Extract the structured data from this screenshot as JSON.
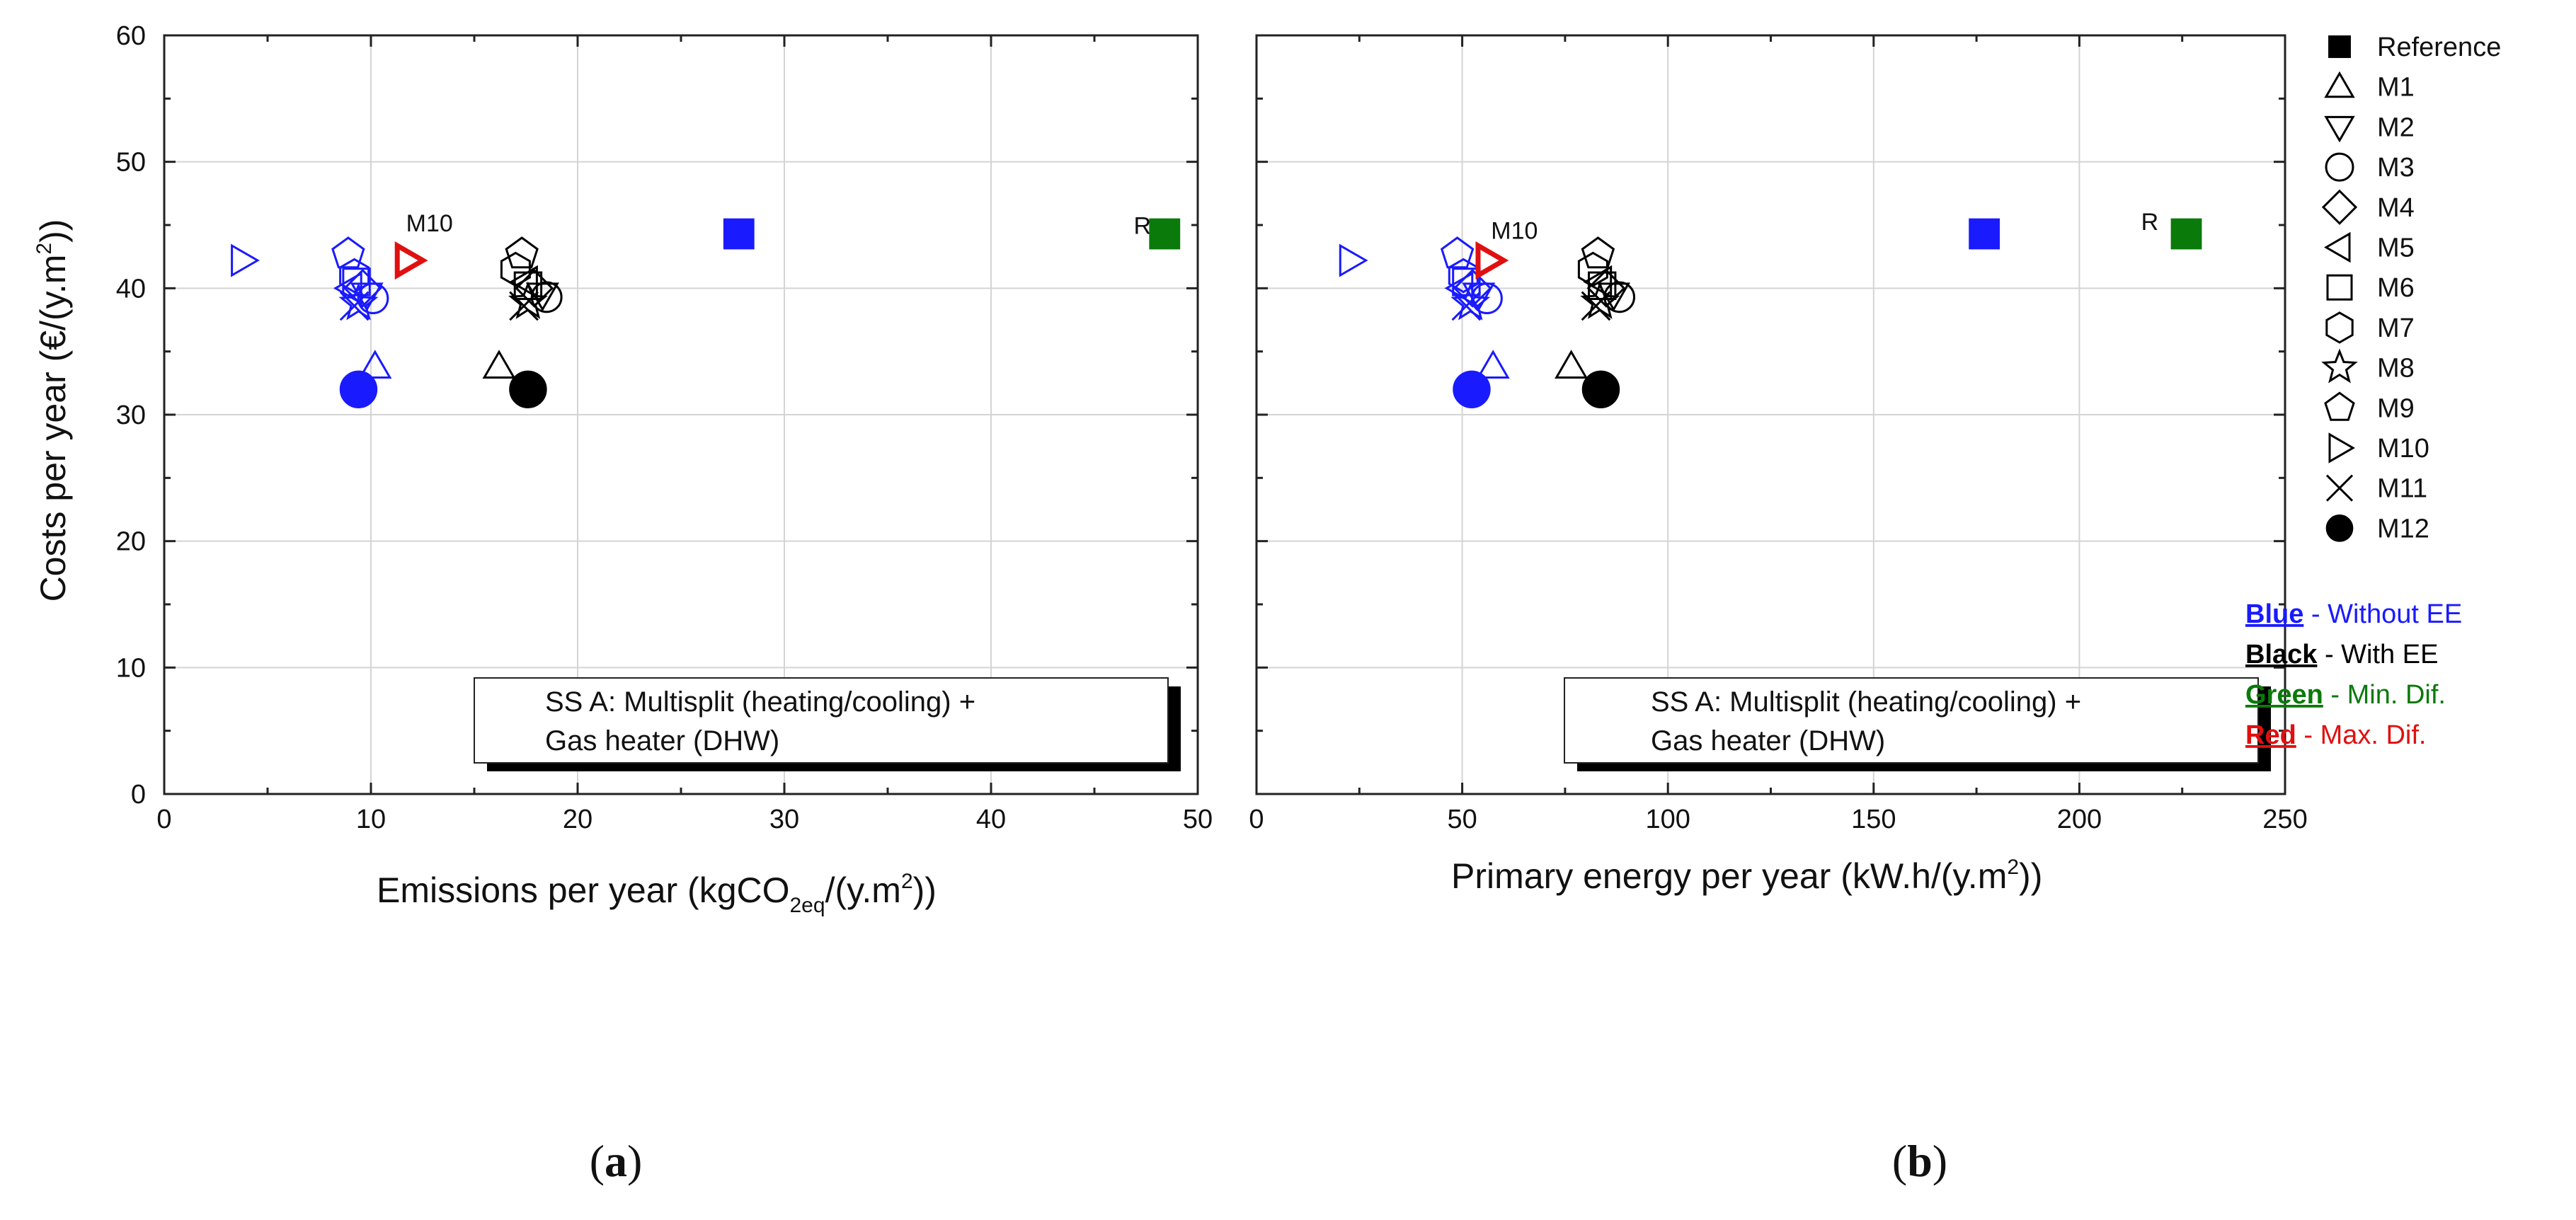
{
  "colors": {
    "blue": "#1a1aff",
    "black": "#000000",
    "green": "#0a7a0a",
    "red": "#e01010",
    "grid": "#d4d4d4",
    "axis": "#222222"
  },
  "chart_data": [
    {
      "type": "scatter",
      "panel_label": "a",
      "xlabel_main": "Emissions per year (kgCO",
      "xlabel_sub": "2eq",
      "xlabel_tail": "/(y.m",
      "xlabel_sup": "2",
      "xlabel_end": "))",
      "ylabel_main": "Costs per year (€/(y.m",
      "ylabel_sup": "2",
      "ylabel_end": "))",
      "xlim": [
        0,
        50
      ],
      "ylim": [
        0,
        60
      ],
      "xticks": [
        "0",
        "10",
        "20",
        "30",
        "40",
        "50"
      ],
      "yticks": [
        "0",
        "10",
        "20",
        "30",
        "40",
        "50",
        "60"
      ],
      "grid": true,
      "annotations": [
        {
          "text": "M10",
          "x": 11.7,
          "y": 44.5
        },
        {
          "text": "R",
          "x": 46.9,
          "y": 44.3
        }
      ],
      "info_box": [
        "SS A: Multisplit (heating/cooling) +",
        "Gas heater (DHW)"
      ],
      "series": [
        {
          "name": "Blue - Without EE",
          "color": "blue",
          "points": [
            {
              "marker": "square",
              "x": 27.8,
              "y": 44.3,
              "filled": true
            },
            {
              "marker": "triangle-right",
              "x": 3.8,
              "y": 42.2
            },
            {
              "marker": "pentagon",
              "x": 8.9,
              "y": 42.7
            },
            {
              "marker": "hexagon",
              "x": 9.2,
              "y": 41.0
            },
            {
              "marker": "square",
              "x": 9.3,
              "y": 40.5
            },
            {
              "marker": "triangle-left",
              "x": 9.0,
              "y": 40.0
            },
            {
              "marker": "diamond",
              "x": 9.6,
              "y": 40.0
            },
            {
              "marker": "triangle-down",
              "x": 9.8,
              "y": 39.5
            },
            {
              "marker": "circle",
              "x": 10.1,
              "y": 39.2
            },
            {
              "marker": "star",
              "x": 9.4,
              "y": 38.8
            },
            {
              "marker": "cross",
              "x": 9.2,
              "y": 38.6
            },
            {
              "marker": "triangle-up",
              "x": 10.2,
              "y": 33.8
            },
            {
              "marker": "circle",
              "x": 9.4,
              "y": 32.0,
              "filled": true
            }
          ]
        },
        {
          "name": "Black - With EE",
          "color": "black",
          "points": [
            {
              "marker": "pentagon",
              "x": 17.3,
              "y": 42.7
            },
            {
              "marker": "hexagon",
              "x": 17.0,
              "y": 41.5
            },
            {
              "marker": "triangle-left",
              "x": 17.5,
              "y": 40.5
            },
            {
              "marker": "diamond",
              "x": 17.9,
              "y": 40.0
            },
            {
              "marker": "square",
              "x": 17.6,
              "y": 40.2
            },
            {
              "marker": "triangle-down",
              "x": 18.3,
              "y": 39.5
            },
            {
              "marker": "circle",
              "x": 18.5,
              "y": 39.3
            },
            {
              "marker": "star",
              "x": 17.6,
              "y": 38.9
            },
            {
              "marker": "cross",
              "x": 17.4,
              "y": 38.6
            },
            {
              "marker": "triangle-up",
              "x": 16.2,
              "y": 33.8
            },
            {
              "marker": "circle",
              "x": 17.6,
              "y": 32.0,
              "filled": true
            }
          ]
        },
        {
          "name": "Green - Min. Dif.",
          "color": "green",
          "points": [
            {
              "marker": "square",
              "x": 48.4,
              "y": 44.3,
              "filled": true
            }
          ]
        },
        {
          "name": "Red - Max. Dif.",
          "color": "red",
          "points": [
            {
              "marker": "triangle-right",
              "x": 11.8,
              "y": 42.2,
              "thick": true
            }
          ]
        }
      ]
    },
    {
      "type": "scatter",
      "panel_label": "b",
      "xlabel_main": "Primary energy per year (kW.h/(y.m",
      "xlabel_sup": "2",
      "xlabel_end": "))",
      "xlim": [
        0,
        250
      ],
      "ylim": [
        0,
        60
      ],
      "xticks": [
        "0",
        "50",
        "100",
        "150",
        "200",
        "250"
      ],
      "grid": true,
      "annotations": [
        {
          "text": "M10",
          "x": 57.0,
          "y": 43.9
        },
        {
          "text": "R",
          "x": 215.0,
          "y": 44.6
        }
      ],
      "info_box": [
        "SS A: Multisplit (heating/cooling) +",
        "Gas heater (DHW)"
      ],
      "series": [
        {
          "name": "Blue - Without EE",
          "color": "blue",
          "points": [
            {
              "marker": "square",
              "x": 176.9,
              "y": 44.3,
              "filled": true
            },
            {
              "marker": "triangle-right",
              "x": 23.0,
              "y": 42.2
            },
            {
              "marker": "pentagon",
              "x": 48.8,
              "y": 42.7
            },
            {
              "marker": "hexagon",
              "x": 50.3,
              "y": 41.0
            },
            {
              "marker": "square",
              "x": 51.0,
              "y": 40.5
            },
            {
              "marker": "triangle-left",
              "x": 49.8,
              "y": 40.0
            },
            {
              "marker": "diamond",
              "x": 52.5,
              "y": 40.0
            },
            {
              "marker": "triangle-down",
              "x": 54.0,
              "y": 39.5
            },
            {
              "marker": "circle",
              "x": 56.0,
              "y": 39.2
            },
            {
              "marker": "star",
              "x": 52.0,
              "y": 38.8
            },
            {
              "marker": "cross",
              "x": 51.0,
              "y": 38.6
            },
            {
              "marker": "triangle-up",
              "x": 57.5,
              "y": 33.8
            },
            {
              "marker": "circle",
              "x": 52.3,
              "y": 32.0,
              "filled": true
            }
          ]
        },
        {
          "name": "Black - With EE",
          "color": "black",
          "points": [
            {
              "marker": "pentagon",
              "x": 83.0,
              "y": 42.7
            },
            {
              "marker": "hexagon",
              "x": 81.8,
              "y": 41.5
            },
            {
              "marker": "triangle-left",
              "x": 83.5,
              "y": 40.5
            },
            {
              "marker": "diamond",
              "x": 85.0,
              "y": 40.0
            },
            {
              "marker": "square",
              "x": 84.0,
              "y": 40.2
            },
            {
              "marker": "triangle-down",
              "x": 86.8,
              "y": 39.5
            },
            {
              "marker": "circle",
              "x": 88.2,
              "y": 39.3
            },
            {
              "marker": "star",
              "x": 83.5,
              "y": 38.9
            },
            {
              "marker": "cross",
              "x": 82.5,
              "y": 38.6
            },
            {
              "marker": "triangle-up",
              "x": 76.5,
              "y": 33.8
            },
            {
              "marker": "circle",
              "x": 83.7,
              "y": 32.0,
              "filled": true
            }
          ]
        },
        {
          "name": "Green - Min. Dif.",
          "color": "green",
          "points": [
            {
              "marker": "square",
              "x": 226.0,
              "y": 44.3,
              "filled": true
            }
          ]
        },
        {
          "name": "Red - Max. Dif.",
          "color": "red",
          "points": [
            {
              "marker": "triangle-right",
              "x": 56.5,
              "y": 42.2,
              "thick": true
            }
          ]
        }
      ]
    }
  ],
  "legend": {
    "items": [
      {
        "marker": "square",
        "filled": true,
        "label": "Reference"
      },
      {
        "marker": "triangle-up",
        "label": "M1"
      },
      {
        "marker": "triangle-down",
        "label": "M2"
      },
      {
        "marker": "circle",
        "label": "M3"
      },
      {
        "marker": "diamond",
        "label": "M4"
      },
      {
        "marker": "triangle-left",
        "label": "M5"
      },
      {
        "marker": "square",
        "label": "M6"
      },
      {
        "marker": "hexagon",
        "label": "M7"
      },
      {
        "marker": "star",
        "label": "M8"
      },
      {
        "marker": "pentagon",
        "label": "M9"
      },
      {
        "marker": "triangle-right",
        "label": "M10"
      },
      {
        "marker": "cross",
        "label": "M11"
      },
      {
        "marker": "circle",
        "filled": true,
        "label": "M12"
      }
    ]
  },
  "color_legend": [
    {
      "key": "Blue",
      "desc": " - Without EE",
      "color": "blue"
    },
    {
      "key": "Black",
      "desc": " - With EE",
      "color": "black"
    },
    {
      "key": "Green",
      "desc": " - Min. Dif.",
      "color": "green"
    },
    {
      "key": "Red",
      "desc": " - Max. Dif.",
      "color": "red"
    }
  ],
  "captions": {
    "a": "(a)",
    "b": "(b)"
  }
}
